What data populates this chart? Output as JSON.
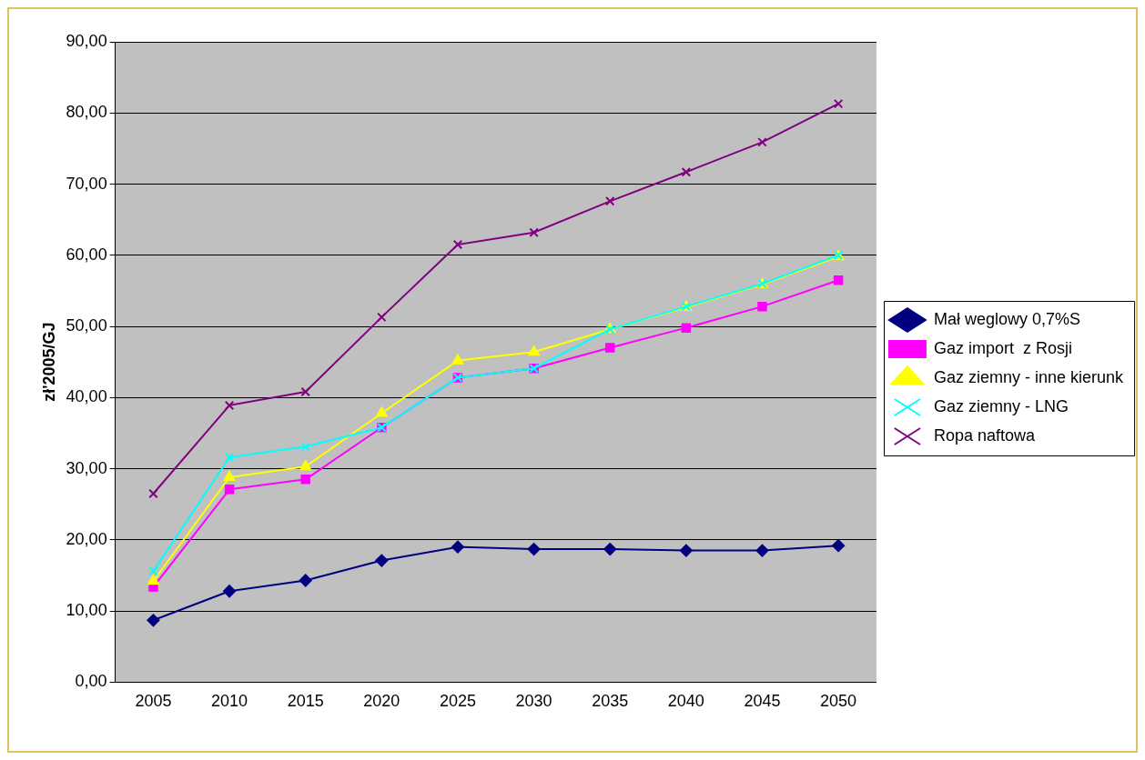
{
  "chart_data": {
    "type": "line",
    "ylabel": "zł'2005/GJ",
    "categories": [
      "2005",
      "2010",
      "2015",
      "2020",
      "2025",
      "2030",
      "2035",
      "2040",
      "2045",
      "2050"
    ],
    "ylim": [
      0,
      90
    ],
    "yticks": [
      {
        "value": 0,
        "label": "0,00"
      },
      {
        "value": 10,
        "label": "10,00"
      },
      {
        "value": 20,
        "label": "20,00"
      },
      {
        "value": 30,
        "label": "30,00"
      },
      {
        "value": 40,
        "label": "40,00"
      },
      {
        "value": 50,
        "label": "50,00"
      },
      {
        "value": 60,
        "label": "60,00"
      },
      {
        "value": 70,
        "label": "70,00"
      },
      {
        "value": 80,
        "label": "80,00"
      },
      {
        "value": 90,
        "label": "90,00"
      }
    ],
    "grid": "y",
    "legend": "right",
    "line_style": "solid",
    "series": [
      {
        "name": "Mał weglowy 0,7%S",
        "color": "#000080",
        "marker": "diamond",
        "values": [
          8.7,
          12.8,
          14.3,
          17.1,
          19.0,
          18.7,
          18.7,
          18.5,
          18.5,
          19.2
        ]
      },
      {
        "name": "Gaz import  z Rosji",
        "color": "#ff00ff",
        "marker": "square",
        "values": [
          13.4,
          27.1,
          28.5,
          35.8,
          42.8,
          44.1,
          47.0,
          49.8,
          52.8,
          56.5
        ]
      },
      {
        "name": "Gaz ziemny - inne kierunk",
        "color": "#ffff00",
        "marker": "triangle",
        "values": [
          14.2,
          28.8,
          30.3,
          37.8,
          45.2,
          46.4,
          49.6,
          52.7,
          55.9,
          59.8
        ]
      },
      {
        "name": "Gaz ziemny - LNG",
        "color": "#00ffff",
        "marker": "cross",
        "values": [
          15.6,
          31.6,
          33.1,
          35.8,
          42.8,
          44.1,
          49.6,
          52.8,
          56.0,
          60.0
        ]
      },
      {
        "name": "Ropa naftowa",
        "color": "#800080",
        "marker": "cross",
        "values": [
          26.5,
          38.9,
          40.8,
          51.3,
          61.5,
          63.2,
          67.6,
          71.7,
          75.9,
          81.3
        ]
      }
    ]
  }
}
